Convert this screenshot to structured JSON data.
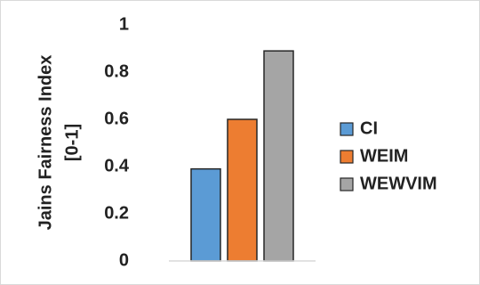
{
  "chart_data": {
    "type": "bar",
    "ylabel": [
      "Jains Fairness Index",
      "[0-1]"
    ],
    "categories": [
      null
    ],
    "series": [
      {
        "name": "CI",
        "color": "#5b9bd5",
        "values": [
          0.39
        ]
      },
      {
        "name": "WEIM",
        "color": "#ed7d31",
        "values": [
          0.6
        ]
      },
      {
        "name": "WEWVIM",
        "color": "#a5a5a5",
        "values": [
          0.89
        ]
      }
    ],
    "ylim": [
      0,
      1
    ],
    "yticks": [
      0,
      0.2,
      0.4,
      0.6,
      0.8,
      1
    ],
    "grid": false,
    "legend": "right"
  }
}
